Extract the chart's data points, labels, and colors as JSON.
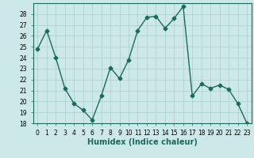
{
  "x": [
    0,
    1,
    2,
    3,
    4,
    5,
    6,
    7,
    8,
    9,
    10,
    11,
    12,
    13,
    14,
    15,
    16,
    17,
    18,
    19,
    20,
    21,
    22,
    23
  ],
  "y": [
    24.8,
    26.5,
    24.0,
    21.2,
    19.8,
    19.2,
    18.3,
    20.5,
    23.1,
    22.1,
    23.8,
    26.5,
    27.7,
    27.8,
    26.7,
    27.6,
    28.7,
    20.5,
    21.6,
    21.2,
    21.5,
    21.1,
    19.8,
    18.0
  ],
  "line_color": "#1a6b5a",
  "marker": "D",
  "marker_size": 2.5,
  "background_color": "#cce8e8",
  "grid_color": "#aacece",
  "xlabel": "Humidex (Indice chaleur)",
  "ylim": [
    18,
    29
  ],
  "yticks": [
    18,
    19,
    20,
    21,
    22,
    23,
    24,
    25,
    26,
    27,
    28
  ],
  "xticks": [
    0,
    1,
    2,
    3,
    4,
    5,
    6,
    7,
    8,
    9,
    10,
    11,
    12,
    13,
    14,
    15,
    16,
    17,
    18,
    19,
    20,
    21,
    22,
    23
  ],
  "tick_fontsize": 5.5,
  "xlabel_fontsize": 7,
  "linewidth": 1.0
}
